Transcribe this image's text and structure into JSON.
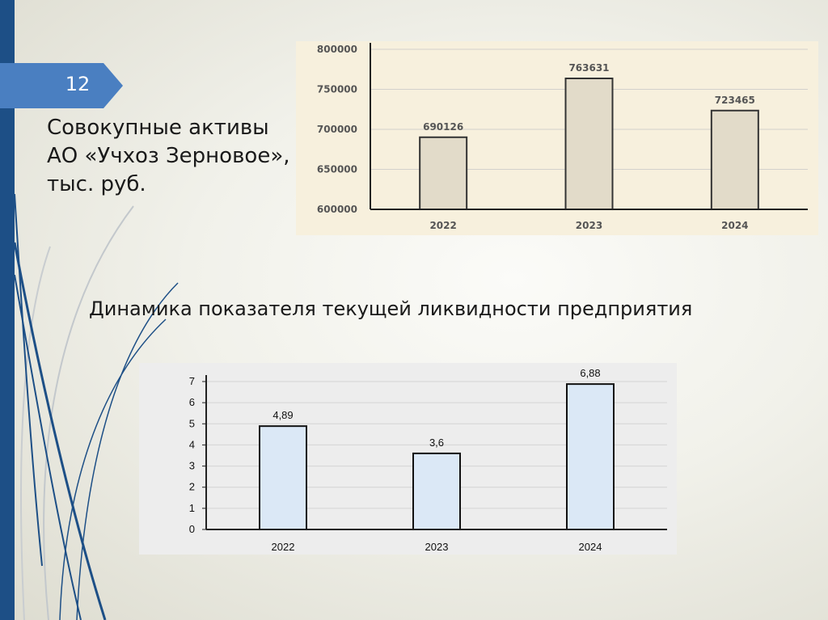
{
  "slide": {
    "number": "12",
    "assets_title": "Совокупные активы\nАО «Учхоз Зерновое»,\nтыс. руб.",
    "liquidity_title": "Динамика показателя текущей ликвидности предприятия"
  },
  "colors": {
    "sidebar": "#1d4f86",
    "badge": "#4a7fc1",
    "assets_bar_fill": "#e2dbc9",
    "liquidity_bar_fill": "#dbe8f6"
  },
  "chart_data": [
    {
      "type": "bar",
      "title": "",
      "categories": [
        "2022",
        "2023",
        "2024"
      ],
      "values": [
        690126,
        763631,
        723465
      ],
      "data_labels": [
        "690126",
        "763631",
        "723465"
      ],
      "ylim": [
        600000,
        800000
      ],
      "yticks": [
        600000,
        650000,
        700000,
        750000,
        800000
      ],
      "ytick_labels": [
        "600000",
        "650000",
        "700000",
        "750000",
        "800000"
      ],
      "grid": true,
      "legend": "none"
    },
    {
      "type": "bar",
      "title": "",
      "categories": [
        "2022",
        "2023",
        "2024"
      ],
      "values": [
        4.89,
        3.6,
        6.88
      ],
      "data_labels": [
        "4,89",
        "3,6",
        "6,88"
      ],
      "ylim": [
        0,
        7
      ],
      "yticks": [
        0,
        1,
        2,
        3,
        4,
        5,
        6,
        7
      ],
      "ytick_labels": [
        "0",
        "1",
        "2",
        "3",
        "4",
        "5",
        "6",
        "7"
      ],
      "grid": true,
      "legend": "none"
    }
  ]
}
